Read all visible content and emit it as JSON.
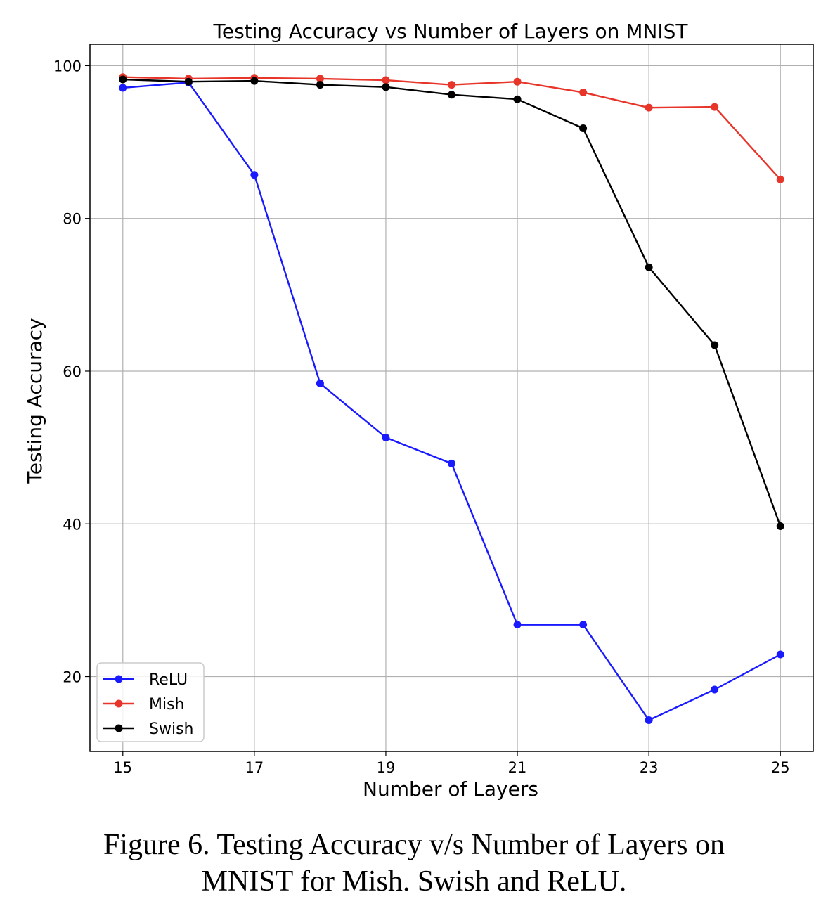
{
  "chart_data": {
    "type": "line",
    "title": "Testing Accuracy vs Number of Layers on MNIST",
    "xlabel": "Number of Layers",
    "ylabel": "Testing Accuracy",
    "x": [
      15,
      16,
      17,
      18,
      19,
      20,
      21,
      22,
      23,
      24,
      25
    ],
    "xlim": [
      14.5,
      25.5
    ],
    "ylim": [
      10.2,
      102.8
    ],
    "xticks": [
      15,
      17,
      19,
      21,
      23,
      25
    ],
    "yticks": [
      20,
      40,
      60,
      80,
      100
    ],
    "grid": true,
    "legend_position": "lower-left",
    "series": [
      {
        "name": "ReLU",
        "color": "#1a1aff",
        "values": [
          97.1,
          97.8,
          85.7,
          58.4,
          51.3,
          47.9,
          26.8,
          26.8,
          14.3,
          18.3,
          22.9
        ]
      },
      {
        "name": "Mish",
        "color": "#e8352a",
        "values": [
          98.5,
          98.3,
          98.4,
          98.3,
          98.1,
          97.5,
          97.9,
          96.5,
          94.5,
          94.6,
          85.1
        ]
      },
      {
        "name": "Swish",
        "color": "#000000",
        "values": [
          98.2,
          97.9,
          98.0,
          97.5,
          97.2,
          96.2,
          95.6,
          91.8,
          73.6,
          63.4,
          39.7
        ]
      }
    ]
  },
  "caption": {
    "line1": "Figure 6. Testing Accuracy v/s Number of Layers on",
    "line2": "MNIST for Mish. Swish and ReLU."
  }
}
